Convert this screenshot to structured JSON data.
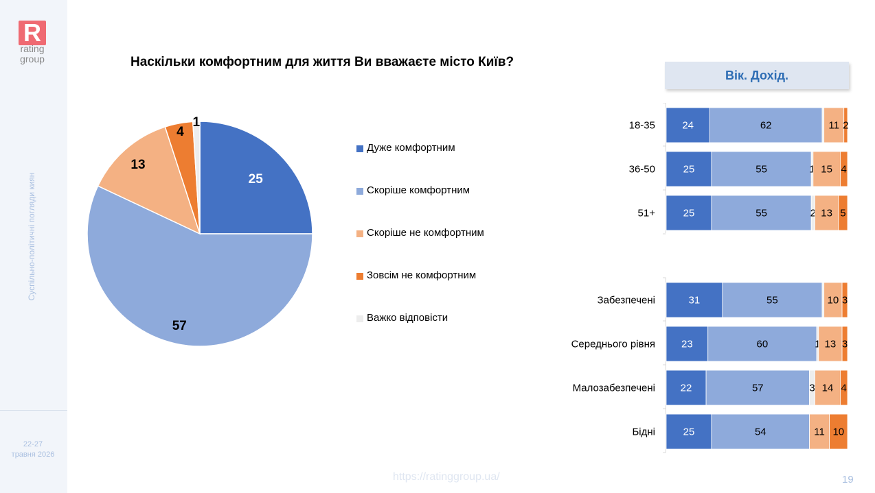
{
  "logo": {
    "letter": "R",
    "text_line1": "rating",
    "text_line2": "group"
  },
  "sidebar": {
    "caption": "Суспільно-політичні погляди киян",
    "date_line1": "22-27",
    "date_line2": "травня 2026"
  },
  "title": "Наскільки комфортним для життя Ви вважаєте місто Київ?",
  "bar_header": "Вік. Дохід.",
  "footer": {
    "url": "https://ratinggroup.ua/",
    "page": "19"
  },
  "colors": {
    "very_comfortable": "#4472c4",
    "rather_comfortable": "#8eaadb",
    "rather_not": "#f4b183",
    "not_at_all": "#ed7d31",
    "hard_to_say": "#ededed"
  },
  "chart_data": [
    {
      "type": "pie",
      "slices": [
        {
          "label": "Дуже комфортним",
          "value": 25,
          "color": "#4472c4"
        },
        {
          "label": "Скоріше комфортним",
          "value": 57,
          "color": "#8eaadb"
        },
        {
          "label": "Скоріше не комфортним",
          "value": 13,
          "color": "#f4b183"
        },
        {
          "label": "Зовсім не комфортним",
          "value": 4,
          "color": "#ed7d31"
        },
        {
          "label": "Важко відповісти",
          "value": 1,
          "color": "#ededed"
        }
      ]
    },
    {
      "type": "bar",
      "orientation": "horizontal",
      "stacked": true,
      "categories": [
        "18-35",
        "36-50",
        "51+",
        "Забезпечені",
        "Середнього рівня",
        "Малозабезпечені",
        "Бідні"
      ],
      "series": [
        {
          "name": "Дуже комфортним",
          "values": [
            24,
            25,
            25,
            31,
            23,
            22,
            25
          ]
        },
        {
          "name": "Скоріше комфортним",
          "values": [
            62,
            55,
            55,
            55,
            60,
            57,
            54
          ]
        },
        {
          "name": "Важко відповісти",
          "values": [
            1,
            1,
            2,
            1,
            1,
            3,
            0
          ]
        },
        {
          "name": "Скоріше не комфортним",
          "values": [
            11,
            15,
            13,
            10,
            13,
            14,
            11
          ]
        },
        {
          "name": "Зовсім не комфортним",
          "values": [
            2,
            4,
            5,
            3,
            3,
            4,
            10
          ]
        }
      ],
      "data_labels": [
        [
          "24",
          "62",
          "",
          "11",
          "2"
        ],
        [
          "25",
          "55",
          "1",
          "15",
          "4"
        ],
        [
          "25",
          "55",
          "2",
          "13",
          "5"
        ],
        [
          "31",
          "55",
          "",
          "10",
          "3"
        ],
        [
          "23",
          "60",
          "1",
          "13",
          "3"
        ],
        [
          "22",
          "57",
          "3",
          "14",
          "4"
        ],
        [
          "25",
          "54",
          "",
          "11",
          "10"
        ]
      ]
    }
  ]
}
